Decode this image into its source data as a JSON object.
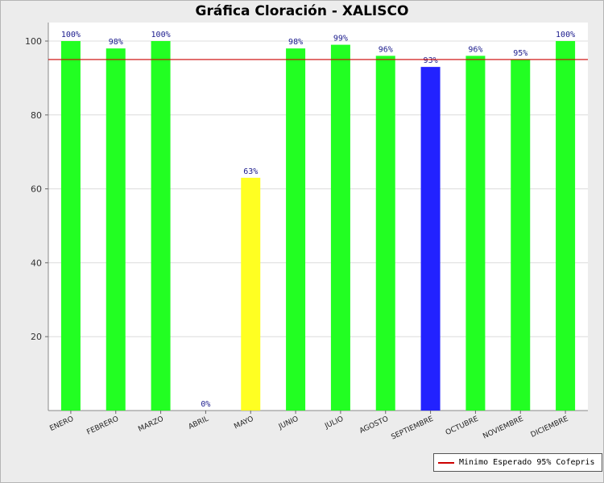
{
  "chart_data": {
    "type": "bar",
    "title": "Gráfica Cloración - XALISCO",
    "categories": [
      "ENERO",
      "FEBRERO",
      "MARZO",
      "ABRIL",
      "MAYO",
      "JUNIO",
      "JULIO",
      "AGOSTO",
      "SEPTIEMBRE",
      "OCTUBRE",
      "NOVIEMBRE",
      "DICIEMBRE"
    ],
    "values": [
      100,
      98,
      100,
      0,
      63,
      98,
      99,
      96,
      93,
      96,
      95,
      100
    ],
    "data_labels": [
      "100%",
      "98%",
      "100%",
      "0%",
      "63%",
      "98%",
      "99%",
      "96%",
      "93%",
      "96%",
      "95%",
      "100%"
    ],
    "bar_colors": [
      "#22ff22",
      "#22ff22",
      "#22ff22",
      "#22ff22",
      "#ffff22",
      "#22ff22",
      "#22ff22",
      "#22ff22",
      "#2222ff",
      "#22ff22",
      "#22ff22",
      "#22ff22"
    ],
    "ylim": [
      0,
      100
    ],
    "yticks": [
      20,
      40,
      60,
      80,
      100
    ],
    "threshold": {
      "value": 95,
      "label": "Minimo Esperado 95% Cofepris",
      "color": "#cc0000"
    },
    "legend_position": "bottom-right",
    "grid": true
  }
}
